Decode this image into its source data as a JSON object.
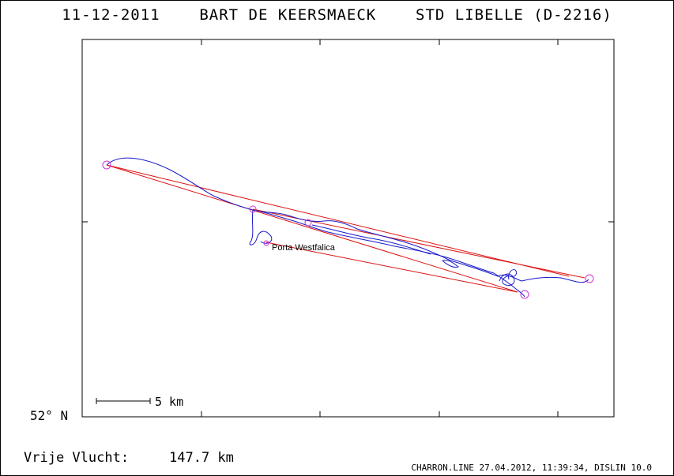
{
  "header": {
    "date": "11-12-2011",
    "pilot": "BART DE KEERSMAECK",
    "glider": "STD LIBELLE (D-2216)"
  },
  "map": {
    "waypoint_label": "Porta Westfalica",
    "scale_label": "5 km",
    "latitude_label": "52° N",
    "colors": {
      "track": "#1a1acc",
      "task": "#dd1111",
      "turnpoint": "#cc33cc"
    }
  },
  "summary": {
    "label": "Vrije Vlucht:",
    "distance": "147.7 km"
  },
  "footer": {
    "credit": "CHARRON.LINE 27.04.2012, 11:39:34, DISLIN 10.0"
  }
}
